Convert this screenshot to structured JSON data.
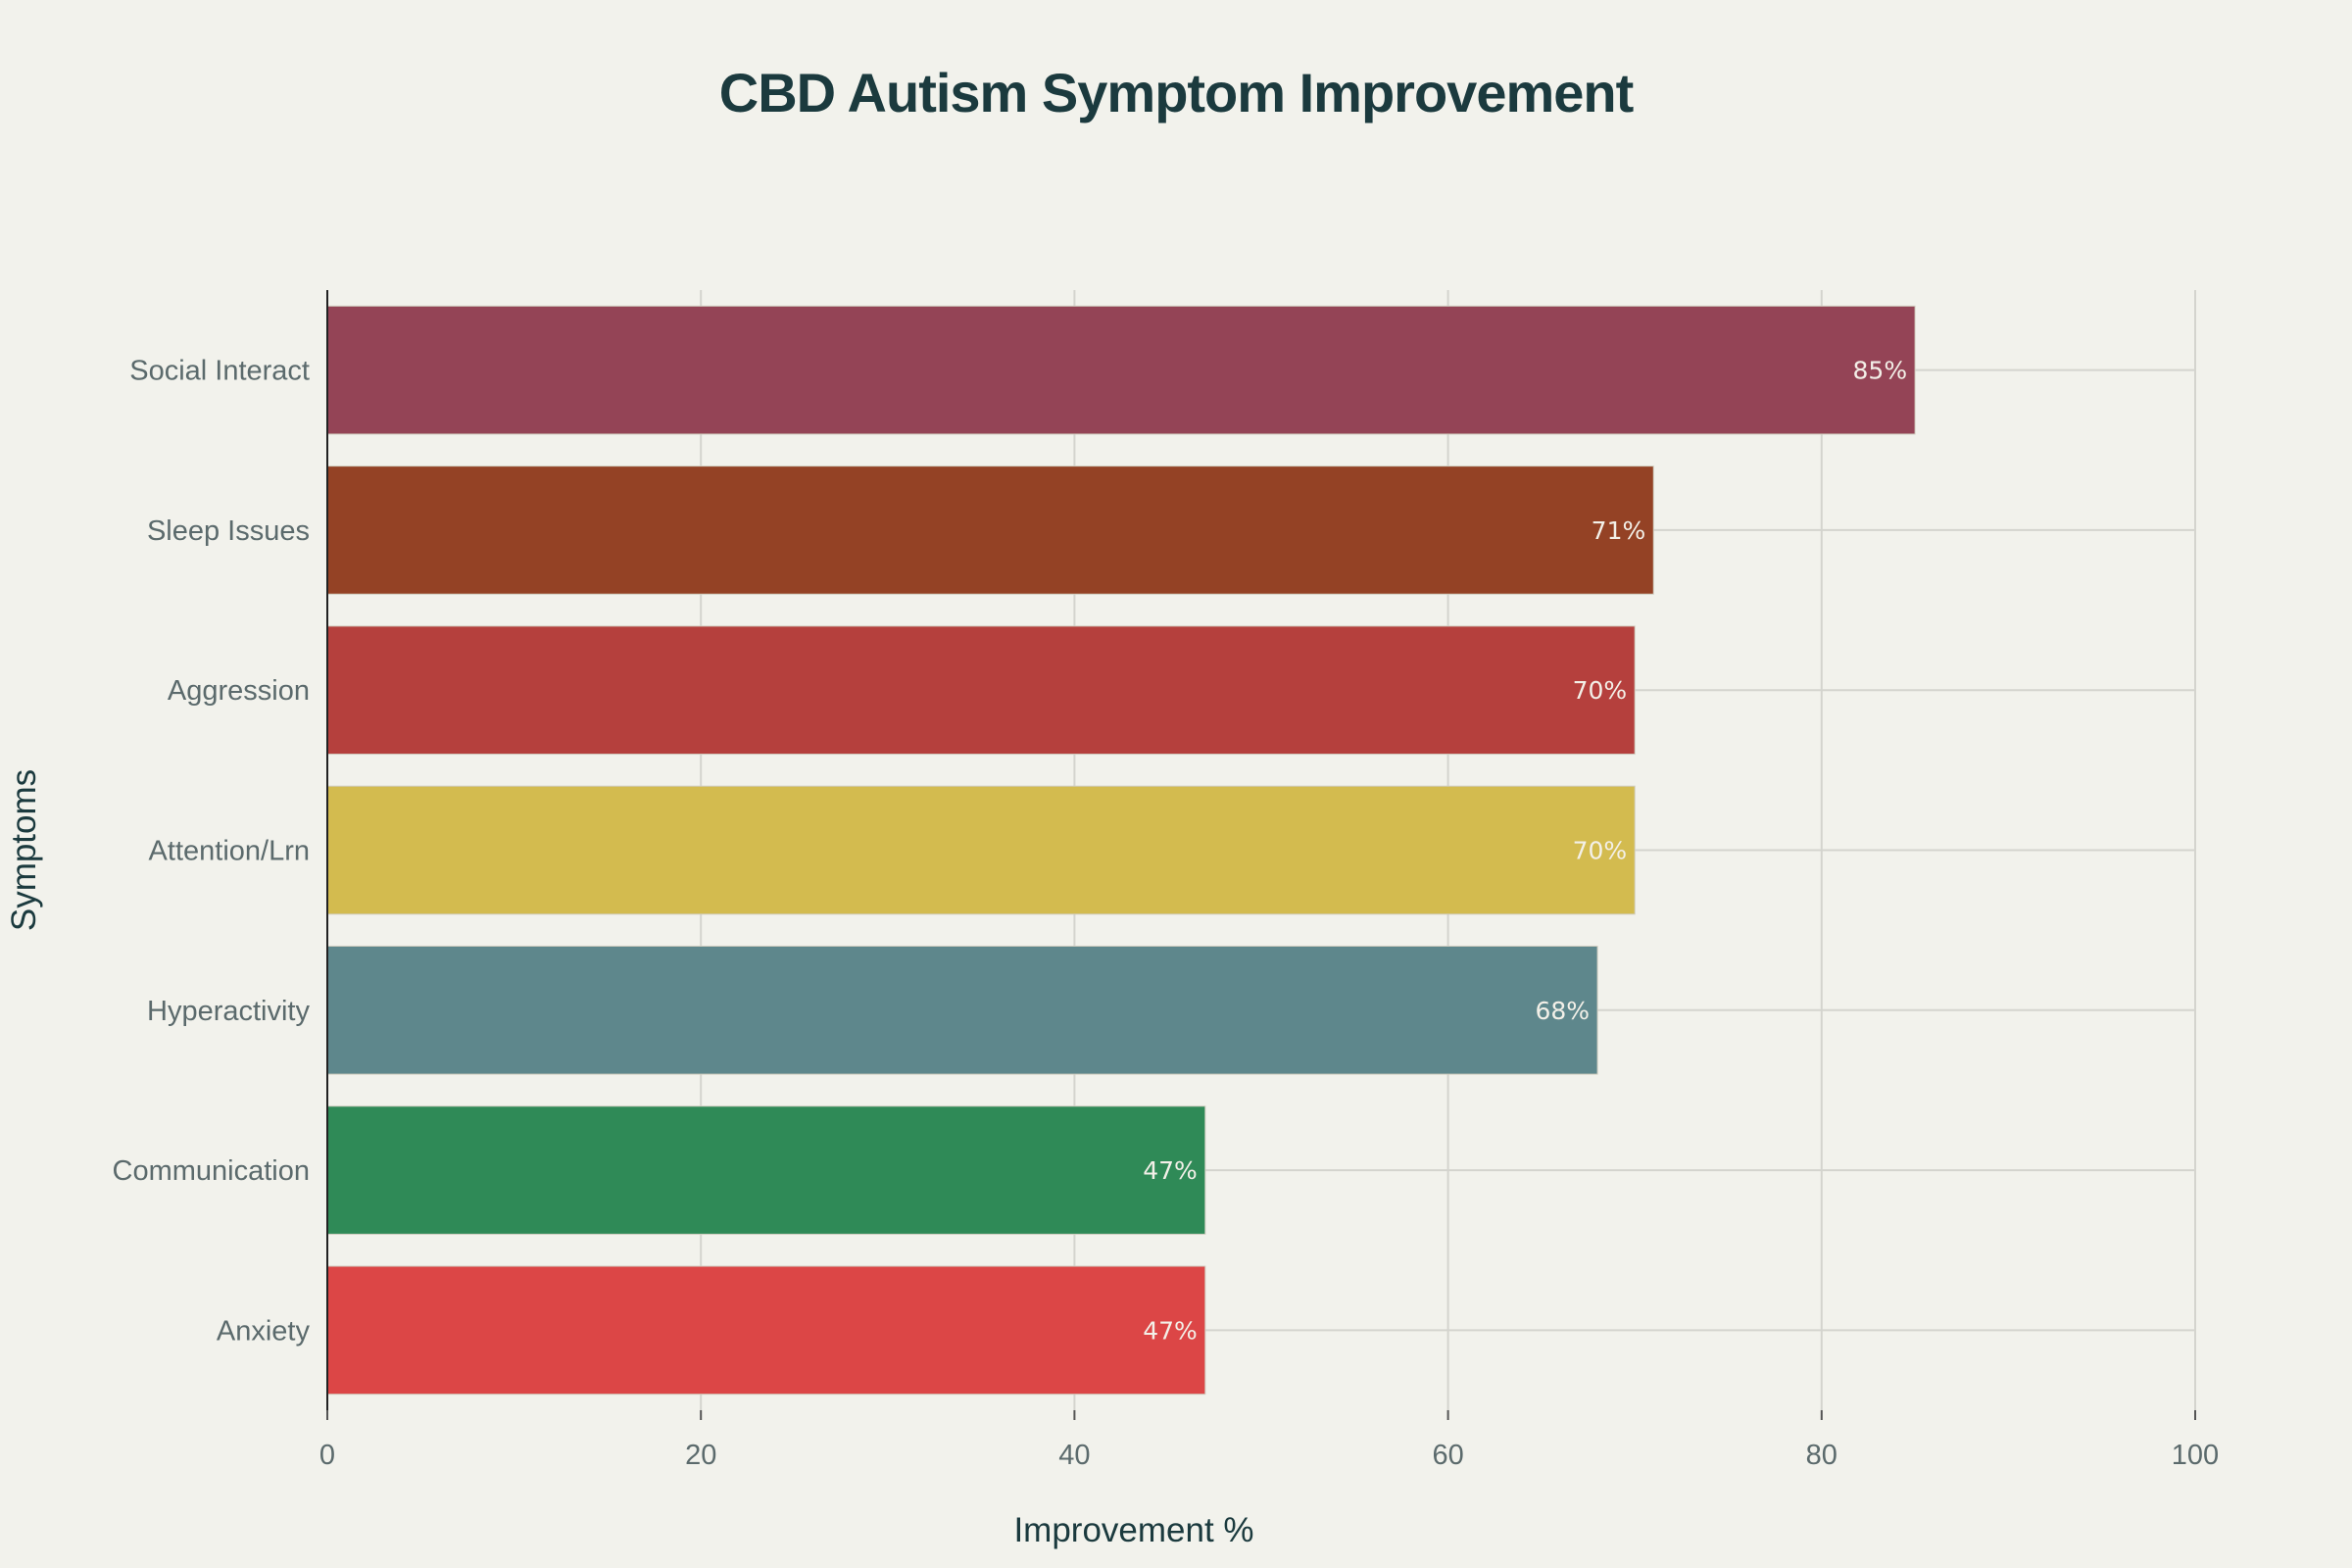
{
  "chart_data": {
    "type": "bar",
    "orientation": "horizontal",
    "title": "CBD Autism Symptom Improvement",
    "xlabel": "Improvement %",
    "ylabel": "Symptoms",
    "xlim": [
      0,
      100
    ],
    "xticks": [
      0,
      20,
      40,
      60,
      80,
      100
    ],
    "grid": true,
    "categories": [
      "Social Interact",
      "Sleep Issues",
      "Aggression",
      "Attention/Lrn",
      "Hyperactivity",
      "Communication",
      "Anxiety"
    ],
    "values": [
      85,
      71,
      70,
      70,
      68,
      47,
      47
    ],
    "data_labels": [
      "85%",
      "71%",
      "70%",
      "70%",
      "68%",
      "47%",
      "47%"
    ],
    "colors": [
      "#944456",
      "#944225",
      "#b5403d",
      "#d3bb4f",
      "#5e878c",
      "#2f8a57",
      "#dc4646"
    ],
    "background": "#f2f2ec"
  }
}
